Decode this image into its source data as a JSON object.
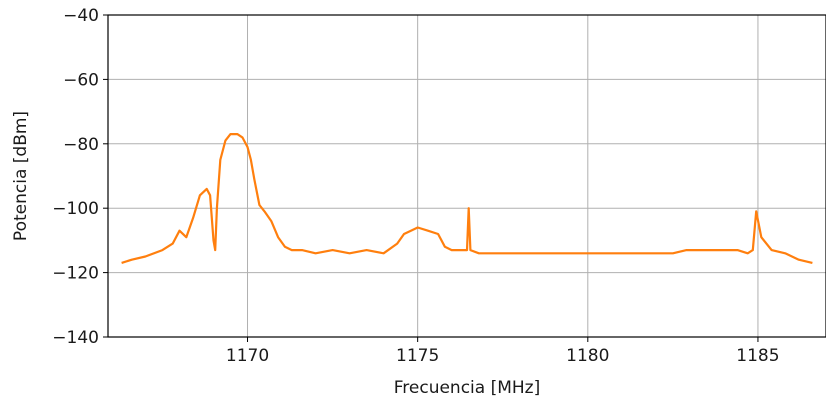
{
  "chart_data": {
    "type": "line",
    "title": "",
    "xlabel": "Frecuencia [MHz]",
    "ylabel": "Potencia [dBm]",
    "xlim": [
      1165.9,
      1187.0
    ],
    "ylim": [
      -140,
      -40
    ],
    "xticks": [
      1170,
      1175,
      1180,
      1185
    ],
    "yticks": [
      -140,
      -120,
      -100,
      -80,
      -60,
      -40
    ],
    "grid": true,
    "legend": "none",
    "series": [
      {
        "color": "#ff7f0e",
        "x": [
          1166.3,
          1166.6,
          1167.0,
          1167.5,
          1167.8,
          1168.0,
          1168.2,
          1168.4,
          1168.6,
          1168.8,
          1168.9,
          1169.0,
          1169.05,
          1169.1,
          1169.2,
          1169.35,
          1169.5,
          1169.7,
          1169.85,
          1170.0,
          1170.1,
          1170.2,
          1170.35,
          1170.5,
          1170.7,
          1170.9,
          1171.1,
          1171.3,
          1171.6,
          1172.0,
          1172.5,
          1173.0,
          1173.5,
          1174.0,
          1174.4,
          1174.6,
          1174.8,
          1175.0,
          1175.3,
          1175.6,
          1175.8,
          1176.0,
          1176.3,
          1176.45,
          1176.5,
          1176.55,
          1176.8,
          1177.5,
          1178.5,
          1179.5,
          1180.5,
          1181.5,
          1182.5,
          1182.9,
          1183.5,
          1184.0,
          1184.4,
          1184.7,
          1184.85,
          1184.95,
          1185.1,
          1185.4,
          1185.8,
          1186.2,
          1186.6
        ],
        "y": [
          -117,
          -116,
          -115,
          -113,
          -111,
          -107,
          -109,
          -103,
          -96,
          -94,
          -96,
          -110,
          -113,
          -100,
          -85,
          -79,
          -77,
          -77,
          -78,
          -81,
          -85,
          -91,
          -99,
          -101,
          -104,
          -109,
          -112,
          -113,
          -113,
          -114,
          -113,
          -114,
          -113,
          -114,
          -111,
          -108,
          -107,
          -106,
          -107,
          -108,
          -112,
          -113,
          -113,
          -113,
          -100,
          -113,
          -114,
          -114,
          -114,
          -114,
          -114,
          -114,
          -114,
          -113,
          -113,
          -113,
          -113,
          -114,
          -113,
          -101,
          -109,
          -113,
          -114,
          -116,
          -117
        ]
      }
    ]
  }
}
